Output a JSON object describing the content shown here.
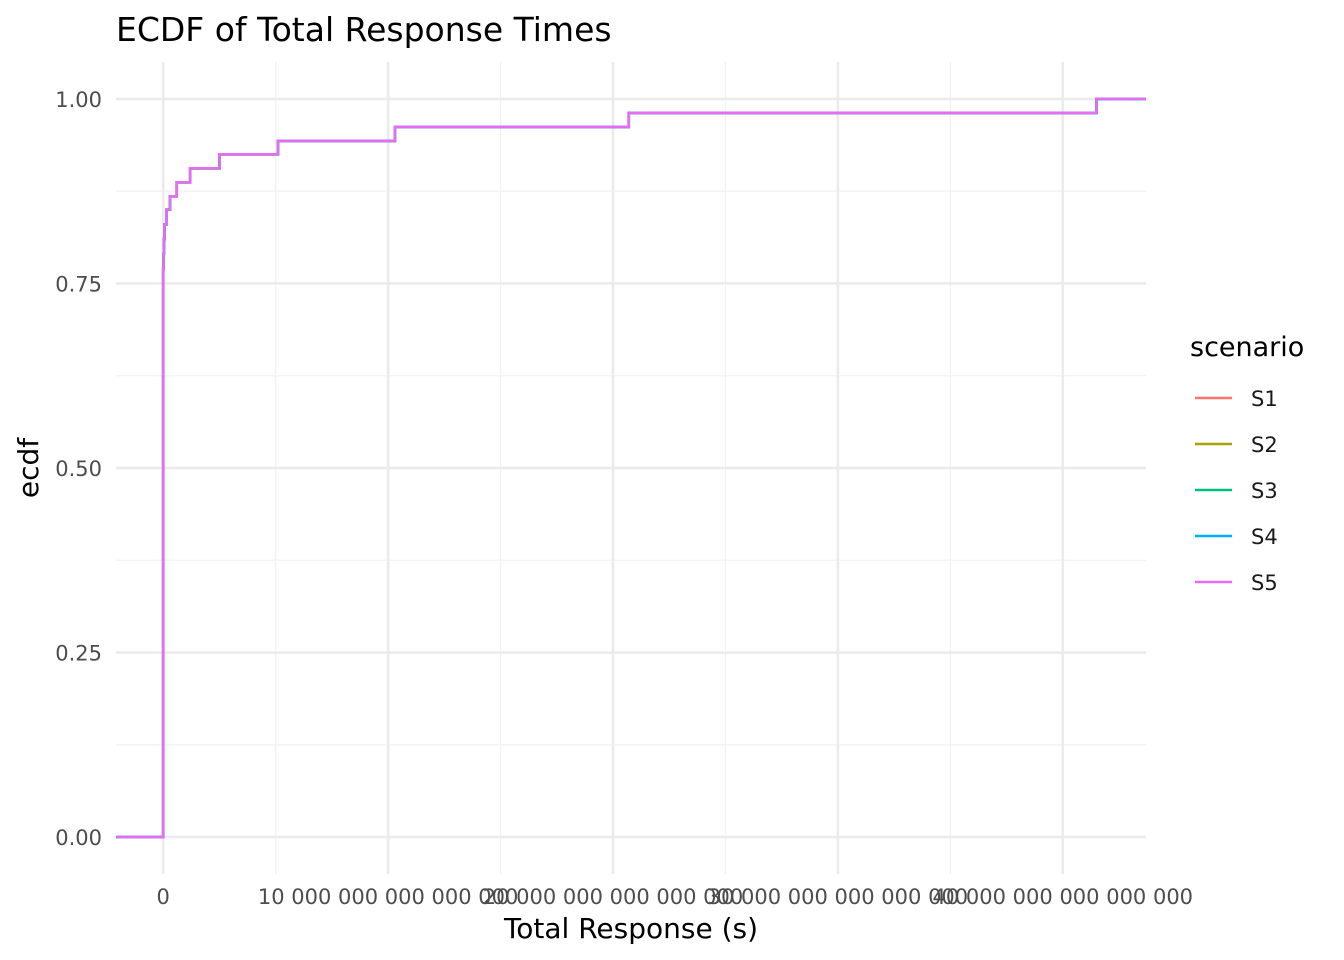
{
  "chart_data": {
    "type": "line",
    "step": true,
    "title": "ECDF of Total Response Times",
    "xlabel": "Total Response (s)",
    "ylabel": "ecdf",
    "xlim": [
      -2100000000000000,
      43700000000000000
    ],
    "ylim": [
      -0.05,
      1.05
    ],
    "x_ticks": [
      0,
      10000000000000000,
      20000000000000000,
      30000000000000000,
      40000000000000000
    ],
    "x_tick_labels": [
      "0",
      "10 000 000 000 000 000",
      "20 000 000 000 000 000",
      "30 000 000 000 000 000",
      "40 000 000 000 000 000"
    ],
    "y_ticks": [
      0,
      0.25,
      0.5,
      0.75,
      1.0
    ],
    "y_tick_labels": [
      "0.00",
      "0.25",
      "0.50",
      "0.75",
      "1.00"
    ],
    "grid": true,
    "legend": {
      "title": "scenario",
      "placement": "right",
      "entries": [
        {
          "name": "S1",
          "color": "#F8766D"
        },
        {
          "name": "S2",
          "color": "#A3A500"
        },
        {
          "name": "S3",
          "color": "#00BF7D"
        },
        {
          "name": "S4",
          "color": "#00B0F6"
        },
        {
          "name": "S5",
          "color": "#E76BF3"
        }
      ]
    },
    "series_points": [
      [
        0,
        0.0
      ],
      [
        0,
        0.77
      ],
      [
        15000000000000,
        0.79
      ],
      [
        30000000000000,
        0.81
      ],
      [
        60000000000000,
        0.83
      ],
      [
        150000000000000,
        0.85
      ],
      [
        300000000000000,
        0.868
      ],
      [
        600000000000000,
        0.887
      ],
      [
        1200000000000000,
        0.906
      ],
      [
        2500000000000000,
        0.925
      ],
      [
        5100000000000000,
        0.943
      ],
      [
        10300000000000000,
        0.962
      ],
      [
        20700000000000000,
        0.981
      ],
      [
        41500000000000000,
        1.0
      ]
    ],
    "series": [
      {
        "name": "S1",
        "color": "#F8766D"
      },
      {
        "name": "S2",
        "color": "#A3A500"
      },
      {
        "name": "S3",
        "color": "#00BF7D"
      },
      {
        "name": "S4",
        "color": "#00B0F6"
      },
      {
        "name": "S5",
        "color": "#E76BF3"
      }
    ]
  }
}
